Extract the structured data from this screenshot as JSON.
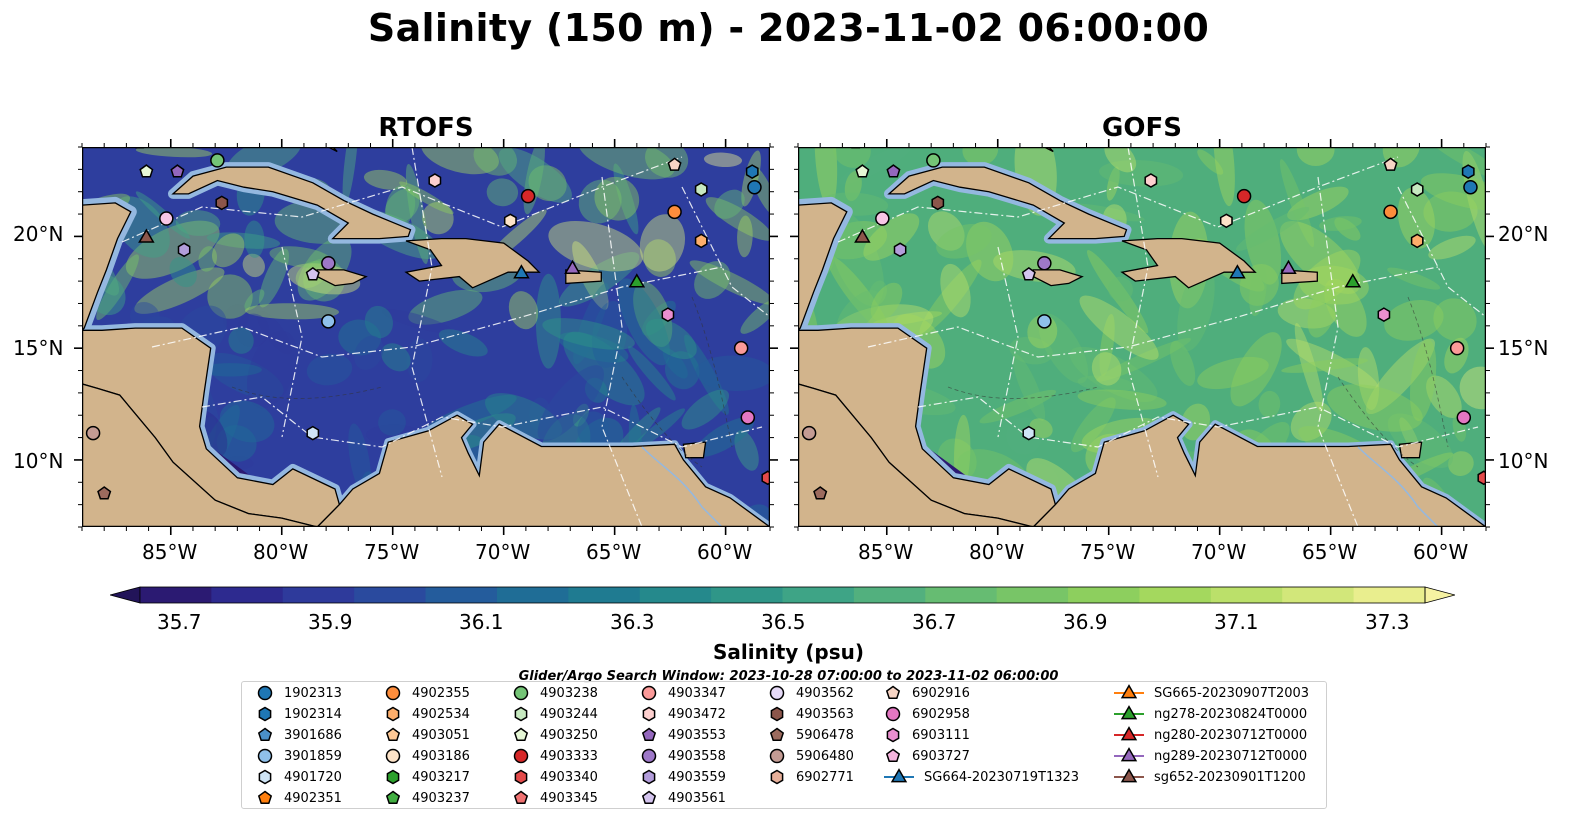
{
  "title": "Salinity (150 m) - 2023-11-02 06:00:00",
  "panels": [
    {
      "title": "RTOFS",
      "model": "rtofs"
    },
    {
      "title": "GOFS",
      "model": "gofs"
    }
  ],
  "axes": {
    "lon_ticks": [
      "85°W",
      "80°W",
      "75°W",
      "70°W",
      "65°W",
      "60°W"
    ],
    "lat_ticks": [
      "20°N",
      "15°N",
      "10°N"
    ]
  },
  "colorbar": {
    "label": "Salinity (psu)",
    "ticks": [
      "35.7",
      "35.9",
      "36.1",
      "36.3",
      "36.5",
      "36.7",
      "36.9",
      "37.1",
      "37.3"
    ],
    "vmin": 35.6,
    "vmax": 37.4,
    "colors": [
      "#2b1a72",
      "#2d2a8f",
      "#2e3a9b",
      "#2a4a9e",
      "#245c9c",
      "#1f6d96",
      "#1f7b91",
      "#25898c",
      "#2f9688",
      "#3ea486",
      "#52b07e",
      "#66bc72",
      "#78c567",
      "#8dcf5e",
      "#a4d85e",
      "#bbe06a",
      "#d2e77a",
      "#e9ee8e"
    ],
    "extend_low": "#221459",
    "extend_high": "#f6f2a2"
  },
  "search_window": "Glider/Argo Search Window: 2023-10-28 07:00:00 to 2023-11-02 06:00:00",
  "legend": {
    "columns": [
      [
        {
          "label": "1902313",
          "marker": "circle",
          "color": "#1f77b4"
        },
        {
          "label": "1902314",
          "marker": "hexagon",
          "color": "#1f77b4"
        },
        {
          "label": "3901686",
          "marker": "pentagon",
          "color": "#4a90c8"
        },
        {
          "label": "3901859",
          "marker": "circle",
          "color": "#8fc0ea"
        },
        {
          "label": "4901720",
          "marker": "hexagon",
          "color": "#cfe5f6"
        },
        {
          "label": "4902351",
          "marker": "pentagon",
          "color": "#ff7f0e"
        }
      ],
      [
        {
          "label": "4902355",
          "marker": "circle",
          "color": "#fd8d3c"
        },
        {
          "label": "4902534",
          "marker": "hexagon",
          "color": "#fdae6b"
        },
        {
          "label": "4903051",
          "marker": "pentagon",
          "color": "#fdc896"
        },
        {
          "label": "4903186",
          "marker": "circle",
          "color": "#fde3c8"
        },
        {
          "label": "4903217",
          "marker": "hexagon",
          "color": "#2ca02c"
        },
        {
          "label": "4903237",
          "marker": "pentagon",
          "color": "#41ae41"
        }
      ],
      [
        {
          "label": "4903238",
          "marker": "circle",
          "color": "#74c476"
        },
        {
          "label": "4903244",
          "marker": "hexagon",
          "color": "#c7e9c0"
        },
        {
          "label": "4903250",
          "marker": "pentagon",
          "color": "#e6f7d6"
        },
        {
          "label": "4903333",
          "marker": "circle",
          "color": "#d62728"
        },
        {
          "label": "4903340",
          "marker": "hexagon",
          "color": "#e34a4a"
        },
        {
          "label": "4903345",
          "marker": "pentagon",
          "color": "#f07272"
        }
      ],
      [
        {
          "label": "4903347",
          "marker": "circle",
          "color": "#fb9a99"
        },
        {
          "label": "4903472",
          "marker": "hexagon",
          "color": "#fdd0cf"
        },
        {
          "label": "4903553",
          "marker": "pentagon",
          "color": "#9467bd"
        },
        {
          "label": "4903558",
          "marker": "circle",
          "color": "#9e78c8"
        },
        {
          "label": "4903559",
          "marker": "hexagon",
          "color": "#b39ddb"
        },
        {
          "label": "4903561",
          "marker": "pentagon",
          "color": "#d4c4ee"
        }
      ],
      [
        {
          "label": "4903562",
          "marker": "circle",
          "color": "#e6daf7"
        },
        {
          "label": "4903563",
          "marker": "hexagon",
          "color": "#8c564b"
        },
        {
          "label": "5906478",
          "marker": "pentagon",
          "color": "#9c6b5e"
        },
        {
          "label": "5906480",
          "marker": "circle",
          "color": "#c49c94"
        },
        {
          "label": "6902771",
          "marker": "hexagon",
          "color": "#e8b09a"
        },
        {
          "label": "",
          "marker": "none",
          "color": "#ffffff"
        }
      ],
      [
        {
          "label": "6902916",
          "marker": "pentagon",
          "color": "#f7d4c4"
        },
        {
          "label": "6902958",
          "marker": "circle",
          "color": "#e377c2"
        },
        {
          "label": "6903111",
          "marker": "hexagon",
          "color": "#ea8fcf"
        },
        {
          "label": "6903727",
          "marker": "pentagon",
          "color": "#f5b4dd"
        },
        {
          "label": "SG664-20230719T1323",
          "marker": "triangle-line",
          "color": "#1f77b4"
        },
        {
          "label": "",
          "marker": "none",
          "color": "#ffffff"
        }
      ],
      [
        {
          "label": "SG665-20230907T2003",
          "marker": "triangle-line",
          "color": "#ff7f0e"
        },
        {
          "label": "ng278-20230824T0000",
          "marker": "triangle-line",
          "color": "#2ca02c"
        },
        {
          "label": "ng280-20230712T0000",
          "marker": "triangle-line",
          "color": "#d62728"
        },
        {
          "label": "ng289-20230712T0000",
          "marker": "triangle-line",
          "color": "#9467bd"
        },
        {
          "label": "sg652-20230901T1200",
          "marker": "triangle-line",
          "color": "#8c564b"
        },
        {
          "label": "",
          "marker": "none",
          "color": "#ffffff"
        }
      ]
    ]
  },
  "map_colors": {
    "land": "#d2b48c",
    "shelf": "#94b8e0",
    "pacific": "#2b1a72",
    "rtofs_base": "#2e3e9e",
    "gofs_base": "#4fae7c"
  },
  "map_extent": {
    "lon": [
      -89,
      -58
    ],
    "lat": [
      7,
      24
    ]
  },
  "platforms": [
    {
      "id": "4903051",
      "marker": "pentagon",
      "color": "#fdc896",
      "lon": -86.4,
      "lat": 24.2
    },
    {
      "id": "4903250",
      "marker": "pentagon",
      "color": "#e6f7d6",
      "lon": -86.1,
      "lat": 22.9
    },
    {
      "id": "4903553",
      "marker": "pentagon",
      "color": "#9467bd",
      "lon": -84.7,
      "lat": 22.9
    },
    {
      "id": "4903238",
      "marker": "circle",
      "color": "#74c476",
      "lon": -82.9,
      "lat": 23.4
    },
    {
      "id": "4903563",
      "marker": "hexagon",
      "color": "#8c564b",
      "lon": -82.7,
      "lat": 21.5
    },
    {
      "id": "6902958",
      "marker": "circle",
      "color": "#f7c6e5",
      "lon": -85.2,
      "lat": 20.8
    },
    {
      "id": "sg652-20230901T1200",
      "marker": "triangle",
      "color": "#8c564b",
      "lon": -86.1,
      "lat": 20.0
    },
    {
      "id": "4903559",
      "marker": "hexagon",
      "color": "#b39ddb",
      "lon": -84.4,
      "lat": 19.4
    },
    {
      "id": "4903561",
      "marker": "pentagon",
      "color": "#d4c4ee",
      "lon": -78.6,
      "lat": 18.3
    },
    {
      "id": "4903558",
      "marker": "circle",
      "color": "#9e78c8",
      "lon": -77.9,
      "lat": 18.8
    },
    {
      "id": "3901859",
      "marker": "circle",
      "color": "#8fc0ea",
      "lon": -77.9,
      "lat": 16.2
    },
    {
      "id": "4901720",
      "marker": "hexagon",
      "color": "#cfe5f6",
      "lon": -78.6,
      "lat": 11.2
    },
    {
      "id": "4903472",
      "marker": "hexagon",
      "color": "#fdd0cf",
      "lon": -73.1,
      "lat": 22.5
    },
    {
      "id": "4903333",
      "marker": "circle",
      "color": "#d62728",
      "lon": -68.9,
      "lat": 21.8
    },
    {
      "id": "4903186",
      "marker": "hexagon",
      "color": "#fde3c8",
      "lon": -69.7,
      "lat": 20.7
    },
    {
      "id": "SG664-20230719T1323",
      "marker": "triangle",
      "color": "#1f77b4",
      "lon": -69.2,
      "lat": 18.4
    },
    {
      "id": "ng289-20230712T0000",
      "marker": "triangle",
      "color": "#9467bd",
      "lon": -66.9,
      "lat": 18.6
    },
    {
      "id": "ng278-20230824T0000",
      "marker": "triangle",
      "color": "#2ca02c",
      "lon": -64.0,
      "lat": 18.0
    },
    {
      "id": "6902916",
      "marker": "pentagon",
      "color": "#f7d4c4",
      "lon": -62.3,
      "lat": 23.2
    },
    {
      "id": "4902355",
      "marker": "circle",
      "color": "#fd8d3c",
      "lon": -62.3,
      "lat": 21.1
    },
    {
      "id": "4903244",
      "marker": "hexagon",
      "color": "#c7e9c0",
      "lon": -61.1,
      "lat": 22.1
    },
    {
      "id": "4902534",
      "marker": "hexagon",
      "color": "#fdae6b",
      "lon": -61.1,
      "lat": 19.8
    },
    {
      "id": "1902314",
      "marker": "hexagon",
      "color": "#1f77b4",
      "lon": -58.8,
      "lat": 22.9
    },
    {
      "id": "1902313",
      "marker": "circle",
      "color": "#1f77b4",
      "lon": -58.7,
      "lat": 22.2
    },
    {
      "id": "6903111",
      "marker": "hexagon",
      "color": "#ea8fcf",
      "lon": -62.6,
      "lat": 16.5
    },
    {
      "id": "4903347",
      "marker": "circle",
      "color": "#fb9a99",
      "lon": -59.3,
      "lat": 15.0
    },
    {
      "id": "6902958b",
      "marker": "circle",
      "color": "#e377c2",
      "lon": -59.0,
      "lat": 11.9
    },
    {
      "id": "4903340",
      "marker": "hexagon",
      "color": "#e34a4a",
      "lon": -58.1,
      "lat": 9.2
    },
    {
      "id": "5906480",
      "marker": "circle",
      "color": "#c49c94",
      "lon": -88.5,
      "lat": 11.2
    },
    {
      "id": "5906478",
      "marker": "pentagon",
      "color": "#9c6b5e",
      "lon": -88.0,
      "lat": 8.5
    }
  ]
}
